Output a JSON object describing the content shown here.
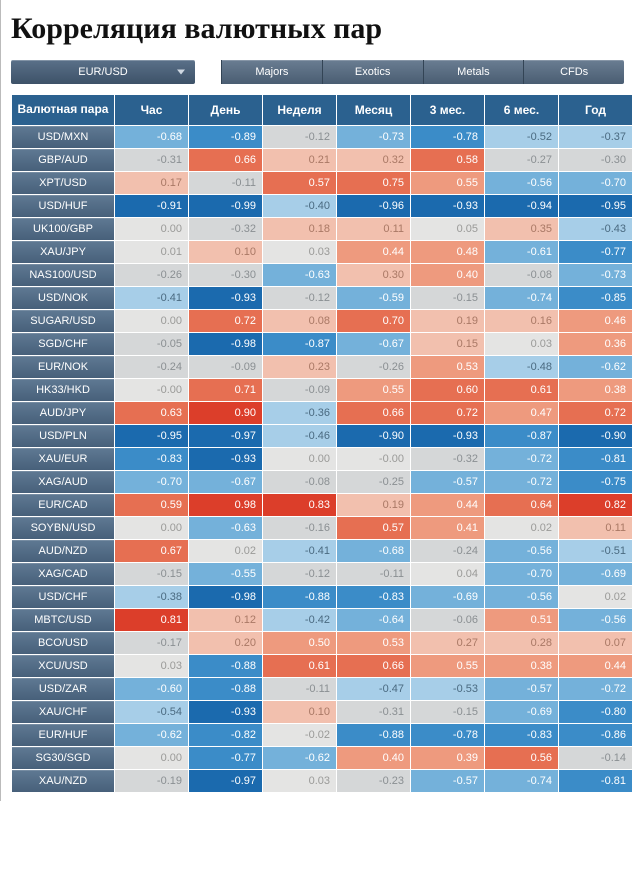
{
  "title": "Корреляция валютных пар",
  "dropdown": {
    "selected": "EUR/USD"
  },
  "tabs": [
    {
      "label": "Majors"
    },
    {
      "label": "Exotics"
    },
    {
      "label": "Metals"
    },
    {
      "label": "CFDs"
    }
  ],
  "table": {
    "headers": {
      "pair": "Валютная пара",
      "hour": "Час",
      "day": "День",
      "week": "Неделя",
      "month": "Месяц",
      "m3": "3 мес.",
      "m6": "6 мес.",
      "year": "Год"
    },
    "rows": [
      {
        "pair": "USD/MXN",
        "vals": [
          -0.68,
          -0.89,
          -0.12,
          -0.73,
          -0.78,
          -0.52,
          -0.37
        ]
      },
      {
        "pair": "GBP/AUD",
        "vals": [
          -0.31,
          0.66,
          0.21,
          0.32,
          0.58,
          -0.27,
          -0.3
        ]
      },
      {
        "pair": "XPT/USD",
        "vals": [
          0.17,
          -0.11,
          0.57,
          0.75,
          0.55,
          -0.56,
          -0.7
        ]
      },
      {
        "pair": "USD/HUF",
        "vals": [
          -0.91,
          -0.99,
          -0.4,
          -0.96,
          -0.93,
          -0.94,
          -0.95
        ]
      },
      {
        "pair": "UK100/GBP",
        "vals": [
          0.0,
          -0.32,
          0.18,
          0.11,
          0.05,
          0.35,
          -0.43
        ]
      },
      {
        "pair": "XAU/JPY",
        "vals": [
          0.01,
          0.1,
          0.03,
          0.44,
          0.48,
          -0.61,
          -0.77
        ]
      },
      {
        "pair": "NAS100/USD",
        "vals": [
          -0.26,
          -0.3,
          -0.63,
          0.3,
          0.4,
          -0.08,
          -0.73
        ]
      },
      {
        "pair": "USD/NOK",
        "vals": [
          -0.41,
          -0.93,
          -0.12,
          -0.59,
          -0.15,
          -0.74,
          -0.85
        ]
      },
      {
        "pair": "SUGAR/USD",
        "vals": [
          0.0,
          0.72,
          0.08,
          0.7,
          0.19,
          0.16,
          0.46
        ]
      },
      {
        "pair": "SGD/CHF",
        "vals": [
          -0.05,
          -0.98,
          -0.87,
          -0.67,
          0.15,
          0.03,
          0.36
        ]
      },
      {
        "pair": "EUR/NOK",
        "vals": [
          -0.24,
          -0.09,
          0.23,
          -0.26,
          0.53,
          -0.48,
          -0.62
        ]
      },
      {
        "pair": "HK33/HKD",
        "vals": [
          -0.0,
          0.71,
          -0.09,
          0.55,
          0.6,
          0.61,
          0.38
        ]
      },
      {
        "pair": "AUD/JPY",
        "vals": [
          0.63,
          0.9,
          -0.36,
          0.66,
          0.72,
          0.47,
          0.72
        ]
      },
      {
        "pair": "USD/PLN",
        "vals": [
          -0.95,
          -0.97,
          -0.46,
          -0.9,
          -0.93,
          -0.87,
          -0.9
        ]
      },
      {
        "pair": "XAU/EUR",
        "vals": [
          -0.83,
          -0.93,
          0.0,
          -0.0,
          -0.32,
          -0.72,
          -0.81
        ]
      },
      {
        "pair": "XAG/AUD",
        "vals": [
          -0.7,
          -0.67,
          -0.08,
          -0.25,
          -0.57,
          -0.72,
          -0.75
        ]
      },
      {
        "pair": "EUR/CAD",
        "vals": [
          0.59,
          0.98,
          0.83,
          0.19,
          0.44,
          0.64,
          0.82
        ]
      },
      {
        "pair": "SOYBN/USD",
        "vals": [
          0.0,
          -0.63,
          -0.16,
          0.57,
          0.41,
          0.02,
          0.11
        ]
      },
      {
        "pair": "AUD/NZD",
        "vals": [
          0.67,
          0.02,
          -0.41,
          -0.68,
          -0.24,
          -0.56,
          -0.51
        ]
      },
      {
        "pair": "XAG/CAD",
        "vals": [
          -0.15,
          -0.55,
          -0.12,
          -0.11,
          0.04,
          -0.7,
          -0.69
        ]
      },
      {
        "pair": "USD/CHF",
        "vals": [
          -0.38,
          -0.98,
          -0.88,
          -0.83,
          -0.69,
          -0.56,
          0.02
        ]
      },
      {
        "pair": "MBTC/USD",
        "vals": [
          0.81,
          0.12,
          -0.42,
          -0.64,
          -0.06,
          0.51,
          -0.56
        ]
      },
      {
        "pair": "BCO/USD",
        "vals": [
          -0.17,
          0.2,
          0.5,
          0.53,
          0.27,
          0.28,
          0.07
        ]
      },
      {
        "pair": "XCU/USD",
        "vals": [
          0.03,
          -0.88,
          0.61,
          0.66,
          0.55,
          0.38,
          0.44
        ]
      },
      {
        "pair": "USD/ZAR",
        "vals": [
          -0.6,
          -0.88,
          -0.11,
          -0.47,
          -0.53,
          -0.57,
          -0.72
        ]
      },
      {
        "pair": "XAU/CHF",
        "vals": [
          -0.54,
          -0.93,
          0.1,
          -0.31,
          -0.15,
          -0.69,
          -0.8
        ]
      },
      {
        "pair": "EUR/HUF",
        "vals": [
          -0.62,
          -0.82,
          -0.02,
          -0.88,
          -0.78,
          -0.83,
          -0.86
        ]
      },
      {
        "pair": "SG30/SGD",
        "vals": [
          0.0,
          -0.77,
          -0.62,
          0.4,
          0.39,
          0.56,
          -0.14
        ]
      },
      {
        "pair": "XAU/NZD",
        "vals": [
          -0.19,
          -0.97,
          0.03,
          -0.23,
          -0.57,
          -0.74,
          -0.81
        ]
      }
    ]
  },
  "heatmap": {
    "scale": [
      {
        "threshold": -0.9,
        "bg": "#1b6aae",
        "fg": "#ffffff"
      },
      {
        "threshold": -0.75,
        "bg": "#3b8cc8",
        "fg": "#ffffff"
      },
      {
        "threshold": -0.55,
        "bg": "#74b1da",
        "fg": "#ffffff"
      },
      {
        "threshold": -0.35,
        "bg": "#a7cee8",
        "fg": "#4a6a80"
      },
      {
        "threshold": -0.05,
        "bg": "#d5d7d8",
        "fg": "#8a8f92"
      },
      {
        "threshold": 0.05,
        "bg": "#e4e4e3",
        "fg": "#9a9a98"
      },
      {
        "threshold": 0.35,
        "bg": "#f2c0ae",
        "fg": "#a97865"
      },
      {
        "threshold": 0.55,
        "bg": "#ee9a7e",
        "fg": "#ffffff"
      },
      {
        "threshold": 0.75,
        "bg": "#e66f52",
        "fg": "#ffffff"
      },
      {
        "threshold": 1.01,
        "bg": "#dc3e2a",
        "fg": "#ffffff"
      }
    ]
  }
}
